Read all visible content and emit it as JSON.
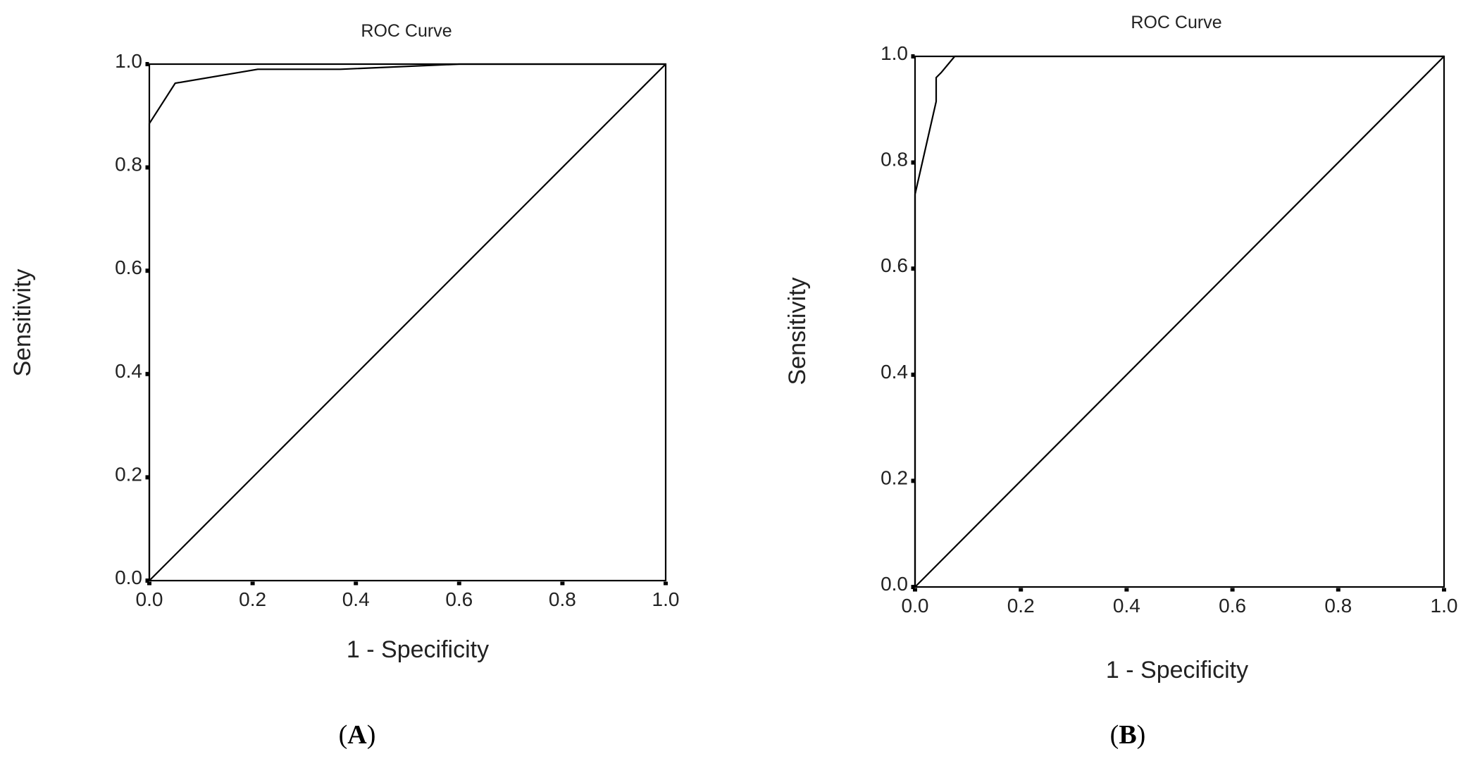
{
  "chart_data": [
    {
      "type": "line",
      "title": "ROC Curve",
      "xlabel": "1 - Specificity",
      "ylabel": "Sensitivity",
      "panel_label": "A",
      "xlim": [
        0,
        1
      ],
      "ylim": [
        0,
        1
      ],
      "x_ticks": [
        "0.0",
        "0.2",
        "0.4",
        "0.6",
        "0.8",
        "1.0"
      ],
      "y_ticks": [
        "0.0",
        "0.2",
        "0.4",
        "0.6",
        "0.8",
        "1.0"
      ],
      "grid": false,
      "legend": "none",
      "series": [
        {
          "x": [
            0.0,
            0.0,
            0.05,
            0.21,
            0.37,
            0.6,
            1.0
          ],
          "y": [
            0.0,
            0.885,
            0.963,
            0.99,
            0.99,
            1.0,
            1.0
          ]
        },
        {
          "x": [
            0.0,
            1.0
          ],
          "y": [
            0.0,
            1.0
          ]
        }
      ]
    },
    {
      "type": "line",
      "title": "ROC Curve",
      "xlabel": "1 - Specificity",
      "ylabel": "Sensitivity",
      "panel_label": "B",
      "xlim": [
        0,
        1
      ],
      "ylim": [
        0,
        1
      ],
      "x_ticks": [
        "0.0",
        "0.2",
        "0.4",
        "0.6",
        "0.8",
        "1.0"
      ],
      "y_ticks": [
        "0.0",
        "0.2",
        "0.4",
        "0.6",
        "0.8",
        "1.0"
      ],
      "grid": false,
      "legend": "none",
      "series": [
        {
          "x": [
            0.0,
            0.0,
            0.04,
            0.04,
            0.05,
            0.075,
            1.0
          ],
          "y": [
            0.0,
            0.74,
            0.915,
            0.96,
            0.97,
            1.0,
            1.0
          ]
        },
        {
          "x": [
            0.0,
            1.0
          ],
          "y": [
            0.0,
            1.0
          ]
        }
      ]
    }
  ]
}
